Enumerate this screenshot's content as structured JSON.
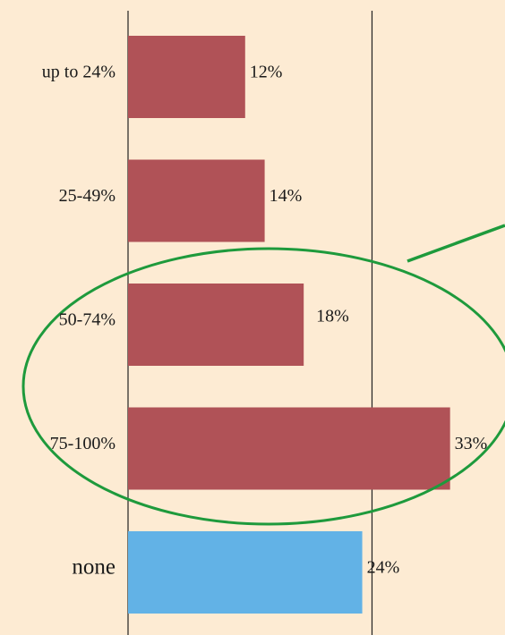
{
  "chart_data": {
    "type": "bar",
    "orientation": "horizontal",
    "categories": [
      "up to 24%",
      "25-49%",
      "50-74%",
      "75-100%",
      "none"
    ],
    "values": [
      12,
      14,
      18,
      33,
      24
    ],
    "value_labels": [
      "12%",
      "14%",
      "18%",
      "33%",
      "24%"
    ],
    "colors": [
      "#b05257",
      "#b05257",
      "#b05257",
      "#b05257",
      "#62b2e6"
    ],
    "xlim": [
      0,
      38.6
    ],
    "xticks": [
      0,
      25
    ],
    "grid": true
  }
}
